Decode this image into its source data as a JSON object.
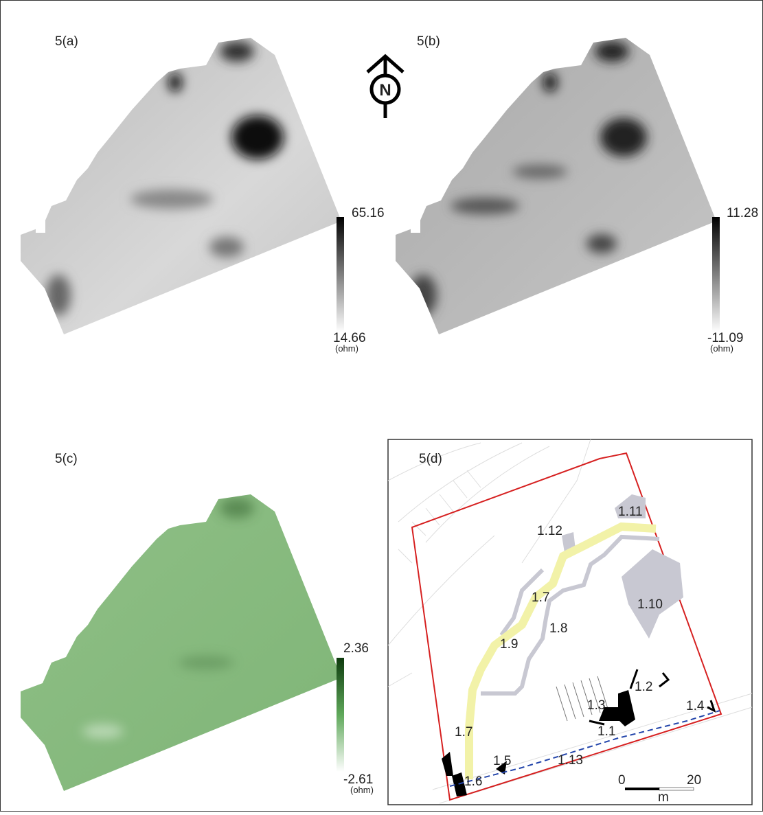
{
  "panels": [
    {
      "label": "5(a)",
      "colorbar": {
        "max": "65.16",
        "min": "14.66",
        "unit": "(ohm)"
      }
    },
    {
      "label": "5(b)",
      "colorbar": {
        "max": "11.28",
        "min": "-11.09",
        "unit": "(ohm)"
      }
    },
    {
      "label": "5(c)",
      "colorbar": {
        "max": "2.36",
        "min": "-2.61",
        "unit": "(ohm)"
      }
    },
    {
      "label": "5(d)",
      "features": [
        "1.11",
        "1.12",
        "1.7",
        "1.10",
        "1.8",
        "1.9",
        "1.2",
        "1.3",
        "1.4",
        "1.1",
        "1.7",
        "1.5",
        "1.13",
        "1.6"
      ],
      "scale": {
        "start": "0",
        "end": "20",
        "unit": "m"
      }
    }
  ],
  "north": "N"
}
